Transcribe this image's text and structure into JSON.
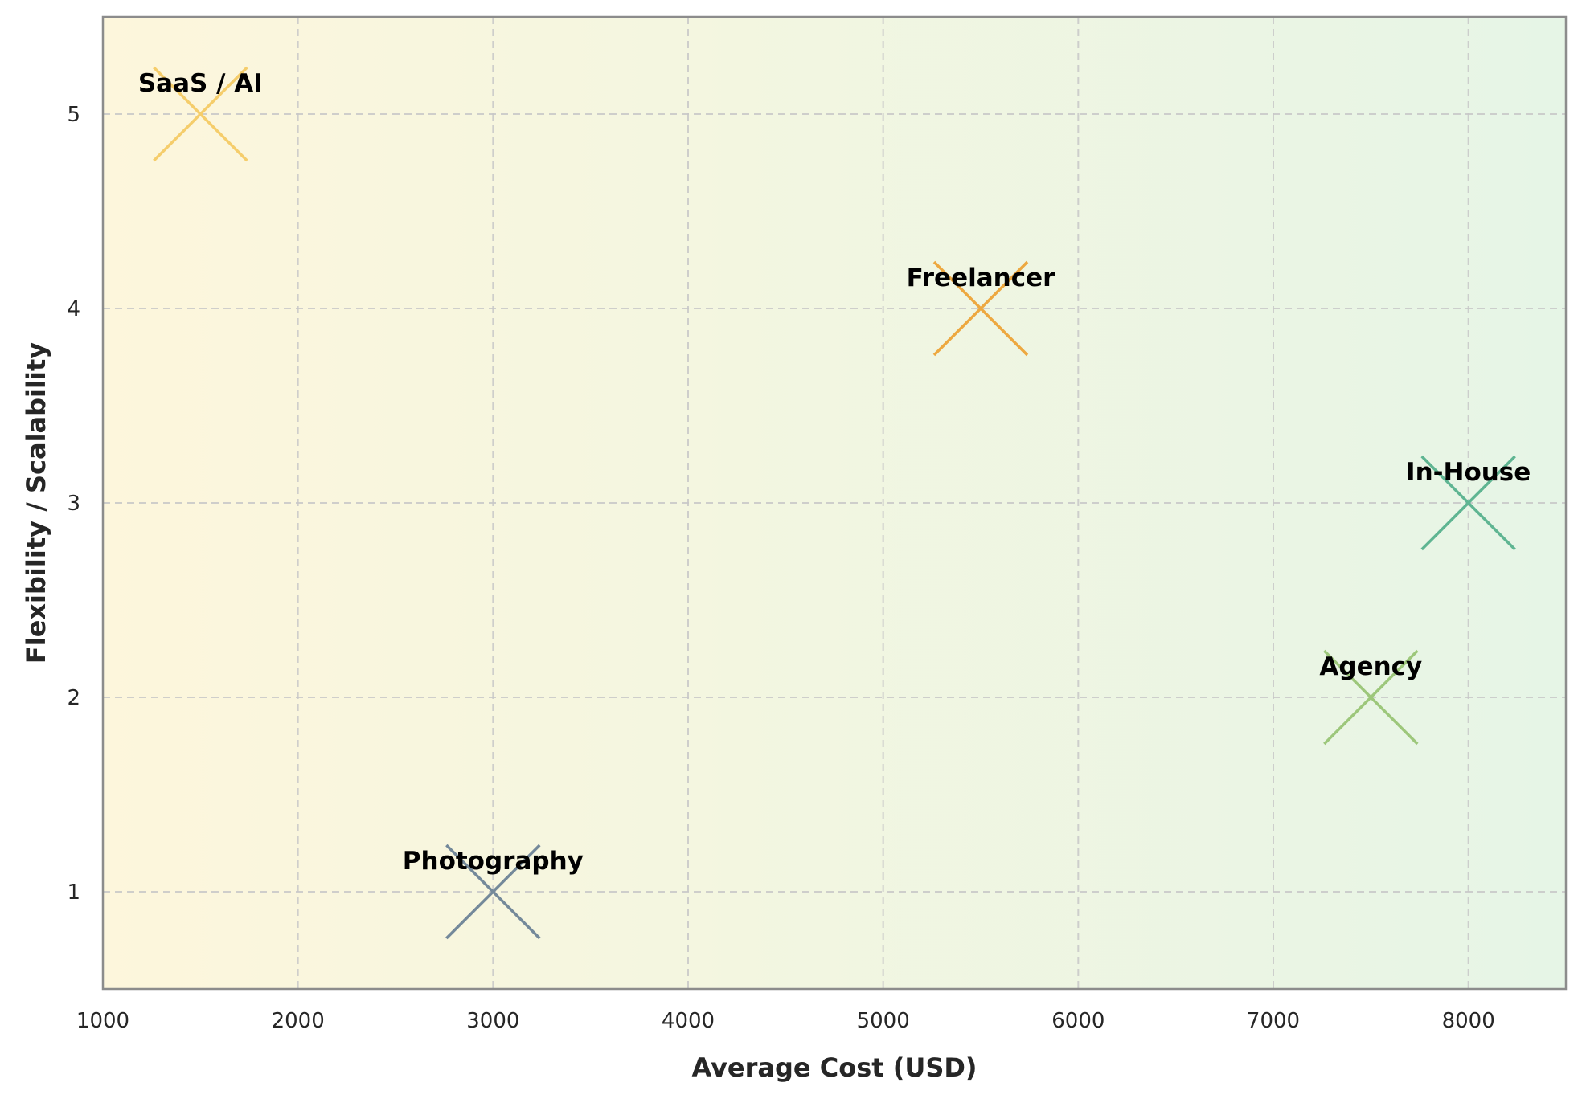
{
  "chart_data": {
    "type": "scatter",
    "title": "",
    "xlabel": "Average Cost (USD)",
    "ylabel": "Flexibility / Scalability",
    "xlim": [
      1000,
      8500
    ],
    "ylim": [
      0.5,
      5.5
    ],
    "x_ticks": [
      1000,
      2000,
      3000,
      4000,
      5000,
      6000,
      7000,
      8000
    ],
    "y_ticks": [
      1,
      2,
      3,
      4,
      5
    ],
    "grid": true,
    "background_gradient": [
      "#fdf6dc",
      "#e6f5e6"
    ],
    "marker": "x",
    "points": [
      {
        "label": "SaaS / AI",
        "x": 1500,
        "y": 5,
        "color": "#f5cd6b"
      },
      {
        "label": "Freelancer",
        "x": 5500,
        "y": 4,
        "color": "#eda840"
      },
      {
        "label": "In-House",
        "x": 8000,
        "y": 3,
        "color": "#5fb592"
      },
      {
        "label": "Agency",
        "x": 7500,
        "y": 2,
        "color": "#9dc77b"
      },
      {
        "label": "Photography",
        "x": 3000,
        "y": 1,
        "color": "#74899a"
      }
    ]
  }
}
